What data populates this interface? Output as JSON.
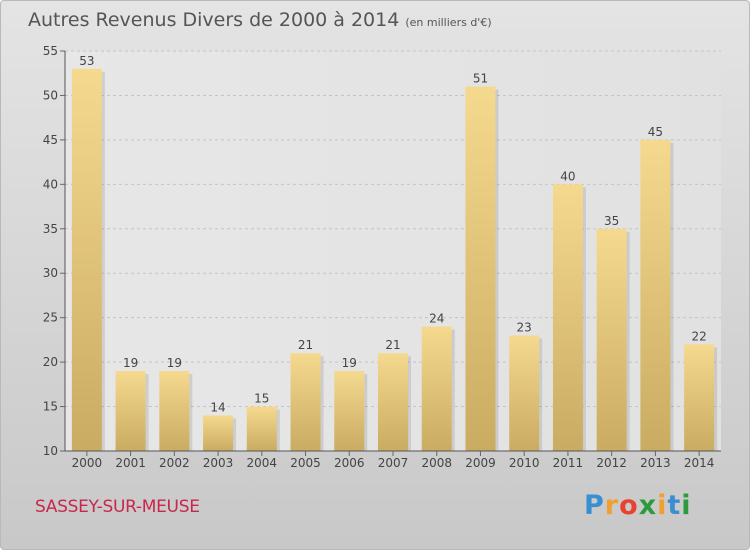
{
  "chart_data": {
    "type": "bar",
    "title": "Autres Revenus Divers de 2000 à 2014",
    "subtitle": "(en milliers d'€)",
    "categories": [
      "2000",
      "2001",
      "2002",
      "2003",
      "2004",
      "2005",
      "2006",
      "2007",
      "2008",
      "2009",
      "2010",
      "2011",
      "2012",
      "2013",
      "2014"
    ],
    "values": [
      53,
      19,
      19,
      14,
      15,
      21,
      19,
      21,
      24,
      51,
      23,
      40,
      35,
      45,
      22
    ],
    "ylim": [
      10,
      55
    ],
    "yticks": [
      10,
      15,
      20,
      25,
      30,
      35,
      40,
      45,
      50,
      55
    ],
    "grid": true,
    "bar_color": "#e8c97c"
  },
  "commune": "SASSEY-SUR-MEUSE",
  "logo": {
    "letters": [
      "P",
      "r",
      "o",
      "x",
      "i",
      "t",
      "i"
    ],
    "colors": [
      "#3a8fd1",
      "#f0a030",
      "#e8432e",
      "#2d9a3e",
      "#f0a030",
      "#3a8fd1",
      "#2d9a3e"
    ]
  }
}
